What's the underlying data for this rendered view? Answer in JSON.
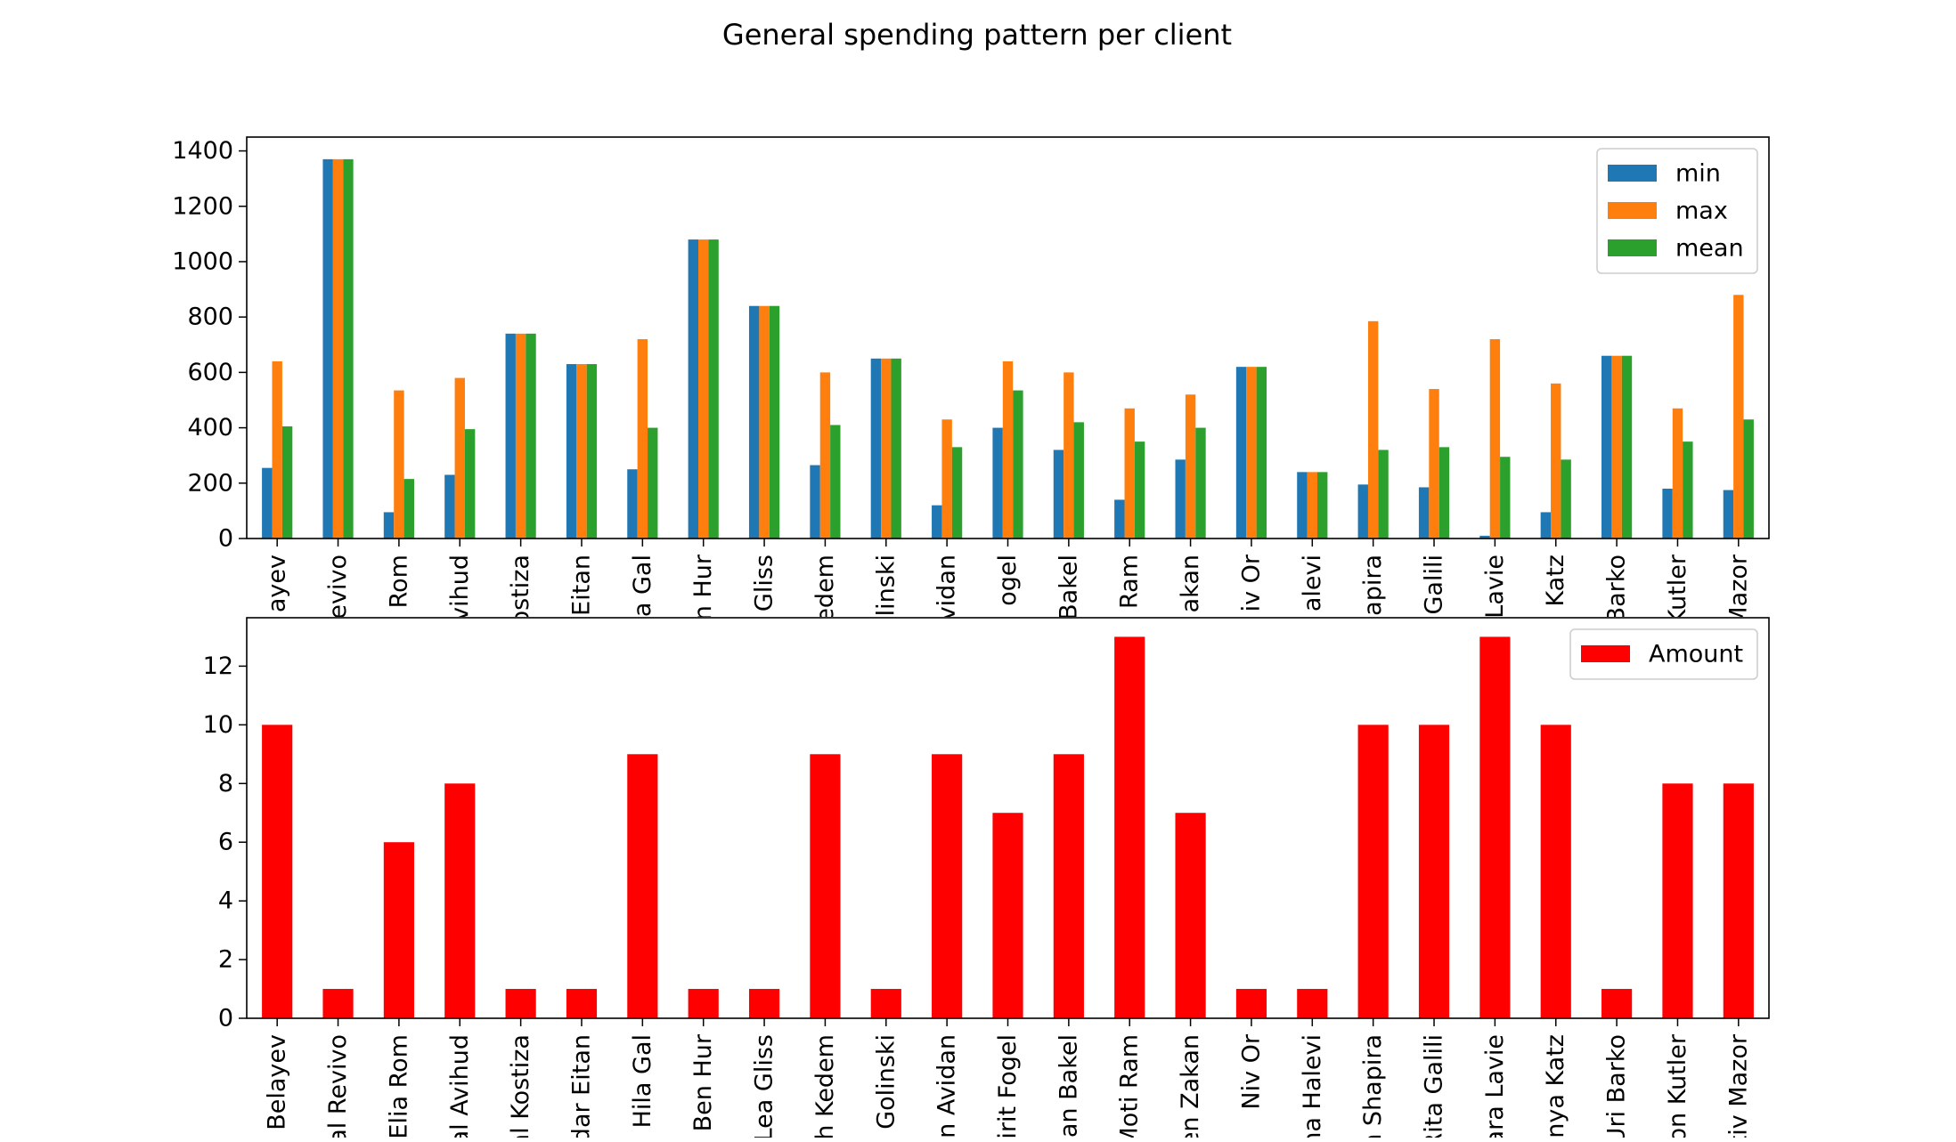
{
  "figure": {
    "title": "General spending pattern per client"
  },
  "chart_data": [
    {
      "type": "bar",
      "title": "",
      "xlabel": "",
      "ylabel": "",
      "ylim": [
        0,
        1450
      ],
      "yticks": [
        0,
        200,
        400,
        600,
        800,
        1000,
        1200,
        1400
      ],
      "grid": false,
      "legend_position": "top-right",
      "categories": [
        "Belayev",
        "Michal Revivo",
        "Elia Rom",
        "Michal Avihud",
        "Michal Kostiza",
        "Idar Eitan",
        "Hila Gal",
        "Ben Hur",
        "Lea Gliss",
        "Noah Kedem",
        "Golinski",
        "Dan Avidan",
        "Sirit Fogel",
        "Dan Bakel",
        "Moti Ram",
        "Ben Zakan",
        "Niv Or",
        "Dana Halevi",
        "Dan Shapira",
        "Rita Galili",
        "Sara Lavie",
        "Tanya Katz",
        "Uri Barko",
        "Ron Kutler",
        "Yiftiv Mazor"
      ],
      "visible_tick_labels": [
        "ayev",
        "evivo",
        "Rom",
        "vihud",
        "ostiza",
        "Eitan",
        "a Gal",
        "n Hur",
        "Gliss",
        "edem",
        "linski",
        "vidan",
        "ogel",
        "Bakel",
        "Ram",
        "akan",
        "iv Or",
        "alevi",
        "hapira",
        "Galili",
        "Lavie",
        "Katz",
        "Barko",
        "Kutler",
        "Mazor"
      ],
      "series": [
        {
          "name": "min",
          "color": "#1f77b4",
          "values": [
            255,
            1370,
            95,
            230,
            740,
            630,
            250,
            1080,
            840,
            265,
            650,
            120,
            400,
            320,
            140,
            285,
            620,
            240,
            195,
            185,
            10,
            95,
            660,
            180,
            175
          ]
        },
        {
          "name": "max",
          "color": "#ff7f0e",
          "values": [
            640,
            1370,
            535,
            580,
            740,
            630,
            720,
            1080,
            840,
            600,
            650,
            430,
            640,
            600,
            470,
            520,
            620,
            240,
            785,
            540,
            720,
            560,
            660,
            470,
            880
          ]
        },
        {
          "name": "mean",
          "color": "#2ca02c",
          "values": [
            405,
            1370,
            215,
            395,
            740,
            630,
            400,
            1080,
            840,
            410,
            650,
            330,
            535,
            420,
            350,
            400,
            620,
            240,
            320,
            330,
            295,
            285,
            660,
            350,
            430
          ]
        }
      ]
    },
    {
      "type": "bar",
      "title": "",
      "xlabel": "",
      "ylabel": "",
      "ylim": [
        0,
        13.65
      ],
      "yticks": [
        0,
        2,
        4,
        6,
        8,
        10,
        12
      ],
      "grid": false,
      "legend_position": "top-right",
      "categories": [
        "Belayev",
        "Michal Revivo",
        "Elia Rom",
        "Michal Avihud",
        "Michal Kostiza",
        "Idar Eitan",
        "Hila Gal",
        "Ben Hur",
        "Lea Gliss",
        "Noah Kedem",
        "Golinski",
        "Dan Avidan",
        "Sirit Fogel",
        "Dan Bakel",
        "Moti Ram",
        "Ben Zakan",
        "Niv Or",
        "Dana Halevi",
        "Dan Shapira",
        "Rita Galili",
        "Sara Lavie",
        "Tanya Katz",
        "Uri Barko",
        "Ron Kutler",
        "Yiftiv Mazor"
      ],
      "visible_tick_labels": [
        "Belayev",
        "al Revivo",
        "Elia Rom",
        "al Avihud",
        "al Kostiza",
        "dar Eitan",
        "Hila Gal",
        "Ben Hur",
        "Lea Gliss",
        "h Kedem",
        "Golinski",
        "n Avidan",
        "irit Fogel",
        "an Bakel",
        "Moti Ram",
        "en Zakan",
        "Niv Or",
        "na Halevi",
        "n Shapira",
        "Rita Galili",
        "ara Lavie",
        "nya Katz",
        "Uri Barko",
        "on Kutler",
        "tiv Mazor"
      ],
      "series": [
        {
          "name": "Amount",
          "color": "#ff0000",
          "values": [
            10,
            1,
            6,
            8,
            1,
            1,
            9,
            1,
            1,
            9,
            1,
            9,
            7,
            9,
            13,
            7,
            1,
            1,
            10,
            10,
            13,
            10,
            1,
            8,
            8
          ]
        }
      ]
    }
  ]
}
